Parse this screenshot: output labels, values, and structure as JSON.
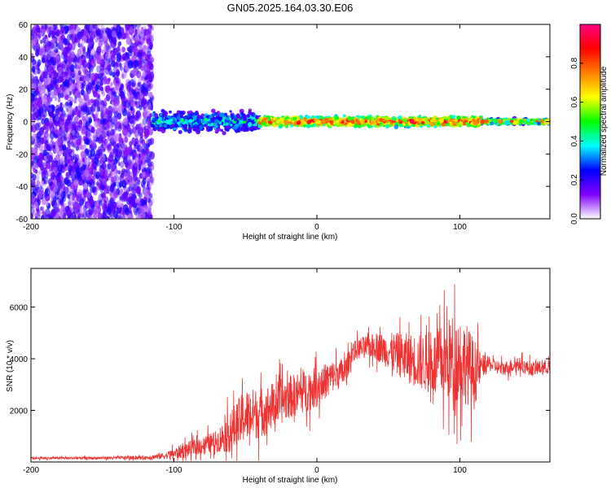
{
  "title": "GN05.2025.164.03.30.E06",
  "chart_data": [
    {
      "type": "heatmap",
      "panel": "spectrogram",
      "xlabel": "Height of straight line (km)",
      "ylabel": "Frequency (Hz)",
      "xlim": [
        -200,
        163
      ],
      "ylim": [
        -60,
        60
      ],
      "x_ticks": [
        {
          "value": -200,
          "label": "-200"
        },
        {
          "value": -100,
          "label": "-100"
        },
        {
          "value": 0,
          "label": "0"
        },
        {
          "value": 100,
          "label": "100"
        }
      ],
      "y_ticks": [
        {
          "value": -60,
          "label": "-60"
        },
        {
          "value": -40,
          "label": "-40"
        },
        {
          "value": -20,
          "label": "-20"
        },
        {
          "value": 0,
          "label": "0"
        },
        {
          "value": 20,
          "label": "20"
        },
        {
          "value": 40,
          "label": "40"
        },
        {
          "value": 60,
          "label": "60"
        }
      ],
      "colorbar": {
        "label": "Normalized spectral amplitude",
        "range": [
          0,
          1
        ],
        "ticks": [
          {
            "value": 0.0,
            "label": "0.0"
          },
          {
            "value": 0.2,
            "label": "0.2"
          },
          {
            "value": 0.4,
            "label": "0.4"
          },
          {
            "value": 0.6,
            "label": "0.6"
          },
          {
            "value": 0.8,
            "label": "0.8"
          }
        ],
        "colors": [
          "#ffffff",
          "#8000ff",
          "#0000ff",
          "#00ffff",
          "#00ff00",
          "#ffff00",
          "#ff8000",
          "#ff0000",
          "#ff0080"
        ]
      },
      "regions": [
        {
          "x": [
            -200,
            -115
          ],
          "freq_center": 0,
          "freq_spread": 60,
          "amplitude": [
            0.05,
            0.25
          ],
          "description_visible": false
        },
        {
          "x": [
            -115,
            -40
          ],
          "freq_center": 0,
          "freq_spread": 8,
          "amplitude": [
            0.2,
            0.5
          ]
        },
        {
          "x": [
            -40,
            115
          ],
          "freq_center": 0,
          "freq_spread": 4,
          "amplitude": [
            0.6,
            1.0
          ]
        },
        {
          "x": [
            115,
            163
          ],
          "freq_center": 0,
          "freq_spread": 2,
          "amplitude": [
            0.4,
            0.9
          ]
        }
      ]
    },
    {
      "type": "line",
      "panel": "snr",
      "xlabel": "Height of straight line (km)",
      "ylabel": "SNR (10 * v/v)",
      "xlim": [
        -200,
        163
      ],
      "ylim": [
        0,
        7500
      ],
      "x_ticks": [
        {
          "value": -200,
          "label": "-200"
        },
        {
          "value": -100,
          "label": "-100"
        },
        {
          "value": 0,
          "label": "0"
        },
        {
          "value": 100,
          "label": "100"
        }
      ],
      "y_ticks": [
        {
          "value": 2000,
          "label": "2000"
        },
        {
          "value": 4000,
          "label": "4000"
        },
        {
          "value": 6000,
          "label": "6000"
        }
      ],
      "color": "#ee3333",
      "envelope": {
        "x": [
          -200,
          -160,
          -120,
          -105,
          -95,
          -80,
          -70,
          -60,
          -50,
          -40,
          -30,
          -20,
          -10,
          0,
          10,
          20,
          25,
          30,
          40,
          50,
          60,
          70,
          80,
          90,
          95,
          100,
          105,
          110,
          115,
          120,
          130,
          140,
          150,
          163
        ],
        "mid": [
          150,
          150,
          170,
          250,
          400,
          650,
          800,
          1200,
          1800,
          1900,
          2200,
          2500,
          2700,
          2900,
          3300,
          3500,
          4300,
          4400,
          4500,
          4300,
          4100,
          3900,
          3800,
          3900,
          4000,
          4000,
          3800,
          3400,
          3700,
          3800,
          3600,
          3800,
          3600,
          3700
        ],
        "amp": [
          70,
          70,
          100,
          200,
          400,
          500,
          600,
          1200,
          1500,
          1400,
          1300,
          1200,
          1200,
          1100,
          900,
          800,
          500,
          600,
          700,
          1000,
          1300,
          1500,
          1700,
          2200,
          2500,
          2500,
          2200,
          2000,
          700,
          400,
          400,
          400,
          400,
          400
        ]
      }
    }
  ]
}
